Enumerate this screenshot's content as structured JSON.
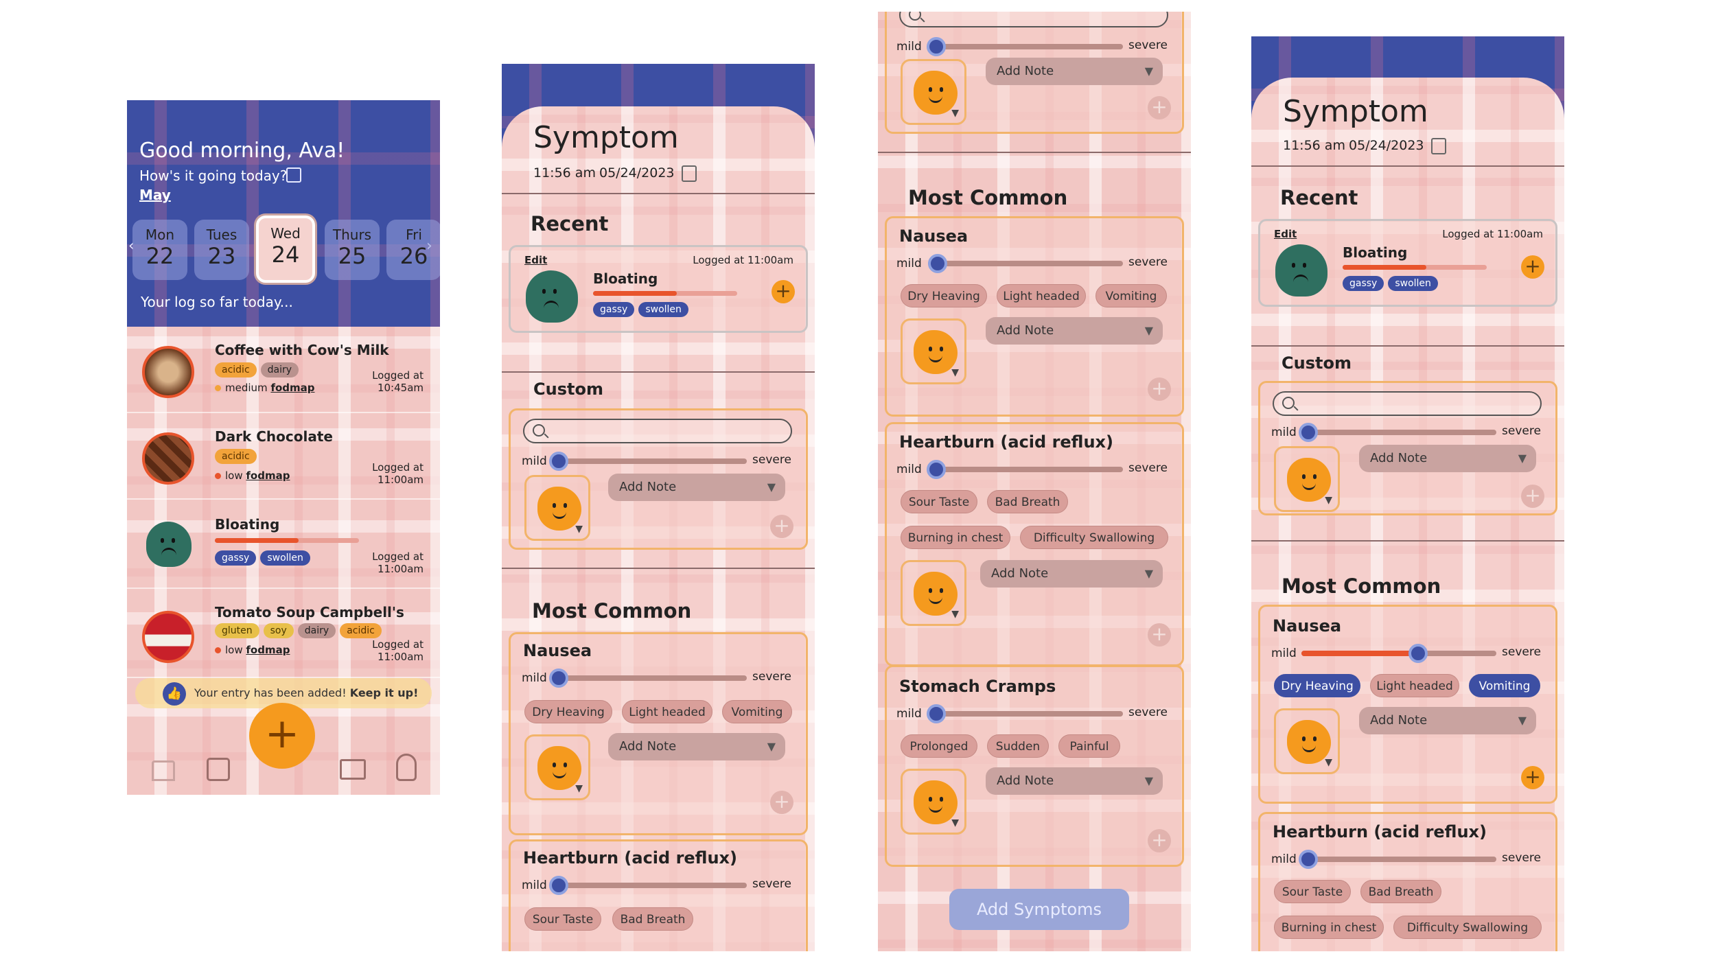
{
  "home": {
    "greeting": "Good morning, Ava!",
    "prompt": "How's it going today?",
    "month": "May",
    "days": [
      {
        "name": "Mon",
        "num": "22"
      },
      {
        "name": "Tues",
        "num": "23"
      },
      {
        "name": "Wed",
        "num": "24"
      },
      {
        "name": "Thurs",
        "num": "25"
      },
      {
        "name": "Fri",
        "num": "26"
      }
    ],
    "log_label": "Your log so far today...",
    "entries": [
      {
        "title": "Coffee with Cow's Milk",
        "tags": [
          "acidic",
          "dairy"
        ],
        "fodmap_level": "medium",
        "fodmap_word": "fodmap",
        "logged": "Logged at",
        "time": "10:45am"
      },
      {
        "title": "Dark Chocolate",
        "tags": [
          "acidic"
        ],
        "fodmap_level": "low",
        "fodmap_word": "fodmap",
        "logged": "Logged at",
        "time": "11:00am"
      },
      {
        "title": "Bloating",
        "tags": [
          "gassy",
          "swollen"
        ],
        "logged": "Logged at",
        "time": "11:00am",
        "severity": 0.58
      },
      {
        "title": "Tomato Soup Campbell's",
        "tags": [
          "gluten",
          "soy",
          "dairy",
          "acidic"
        ],
        "fodmap_level": "low",
        "fodmap_word": "fodmap",
        "logged": "Logged at",
        "time": "11:00am"
      }
    ],
    "toast": "Your entry has been added!",
    "toast_bold": "Keep it up!",
    "add_label": "+"
  },
  "symptom": {
    "title": "Symptom",
    "time": "11:56 am",
    "date": "05/24/2023",
    "recent_heading": "Recent",
    "custom_heading": "Custom",
    "common_heading": "Most Common",
    "edit_label": "Edit",
    "recent_item": {
      "name": "Bloating",
      "logged": "Logged at 11:00am",
      "tags": [
        "gassy",
        "swollen"
      ],
      "severity": 0.58
    },
    "mild_label": "mild",
    "severe_label": "severe",
    "add_note_label": "Add Note",
    "add_button": "Add Symptoms",
    "symptoms": [
      {
        "name": "Nausea",
        "options": [
          "Dry Heaving",
          "Light headed",
          "Vomiting"
        ]
      },
      {
        "name": "Heartburn (acid reflux)",
        "options": [
          "Sour Taste",
          "Bad Breath",
          "Burning in chest",
          "Difficulty Swallowing"
        ]
      },
      {
        "name": "Stomach Cramps",
        "options": [
          "Prolonged",
          "Sudden",
          "Painful"
        ]
      }
    ],
    "nausea_selected_severity": 0.6
  },
  "icons": [
    "calendar-icon",
    "chevron-left-icon",
    "chevron-right-icon",
    "home-icon",
    "chart-icon",
    "book-icon",
    "profile-icon",
    "thumbs-up-icon",
    "search-icon",
    "plus-icon"
  ],
  "colors": {
    "blue": "#3d4fa3",
    "pink": "#f2c7c4",
    "orange": "#f59a1e",
    "red": "#e8542c",
    "green": "#2f6f60"
  }
}
